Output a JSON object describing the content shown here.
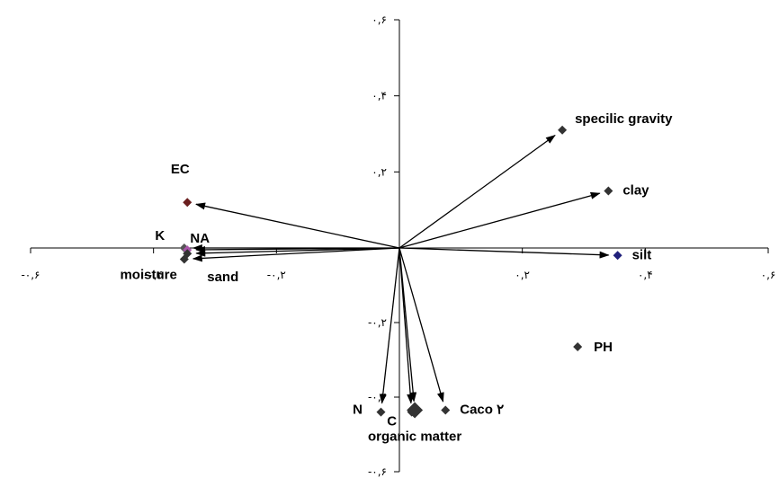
{
  "chart_data": {
    "type": "scatter",
    "subtype": "biplot-with-vectors",
    "title": "",
    "xlabel": "",
    "ylabel": "",
    "xlim": [
      -0.6,
      0.6
    ],
    "ylim": [
      -0.6,
      0.6
    ],
    "grid": false,
    "legend": "none",
    "x_ticks": [
      {
        "value": -0.6,
        "label": "-۰,۶"
      },
      {
        "value": -0.4,
        "label": "-۰,۴"
      },
      {
        "value": -0.2,
        "label": "-۰,۲"
      },
      {
        "value": 0.2,
        "label": "۰,۲"
      },
      {
        "value": 0.4,
        "label": "۰,۴"
      },
      {
        "value": 0.6,
        "label": "۰,۶"
      }
    ],
    "y_ticks": [
      {
        "value": 0.6,
        "label": "۰,۶"
      },
      {
        "value": 0.4,
        "label": "۰,۴"
      },
      {
        "value": 0.2,
        "label": "۰,۲"
      },
      {
        "value": -0.2,
        "label": "-۰,۲"
      },
      {
        "value": -0.4,
        "label": "-۰,۴"
      },
      {
        "value": -0.6,
        "label": "-۰,۶"
      }
    ],
    "points": [
      {
        "label": "specilic gravity",
        "x": 0.265,
        "y": 0.31,
        "arrow": true,
        "color": "#333333"
      },
      {
        "label": "clay",
        "x": 0.34,
        "y": 0.15,
        "arrow": true,
        "color": "#333333"
      },
      {
        "label": "silt",
        "x": 0.355,
        "y": -0.02,
        "arrow": true,
        "color": "#1f1f7a"
      },
      {
        "label": "PH",
        "x": 0.29,
        "y": -0.265,
        "arrow": false,
        "color": "#333333"
      },
      {
        "label": "EC",
        "x": -0.345,
        "y": 0.12,
        "arrow": true,
        "color": "#6b1f1f"
      },
      {
        "label": "K",
        "x": -0.35,
        "y": 0.0,
        "arrow": true,
        "color": "#555555"
      },
      {
        "label": "NA",
        "x": -0.345,
        "y": -0.005,
        "arrow": true,
        "color": "#aa55aa"
      },
      {
        "label": "moisture",
        "x": -0.35,
        "y": -0.03,
        "arrow": true,
        "color": "#333333"
      },
      {
        "label": "sand",
        "x": -0.345,
        "y": -0.015,
        "arrow": true,
        "color": "#333333"
      },
      {
        "label": "N",
        "x": -0.03,
        "y": -0.44,
        "arrow": true,
        "color": "#333333"
      },
      {
        "label": "C",
        "x": 0.02,
        "y": -0.44,
        "arrow": true,
        "color": "#333333"
      },
      {
        "label": "organic matter",
        "x": 0.025,
        "y": -0.435,
        "arrow": true,
        "color": "#333333"
      },
      {
        "label": "Caco ۲",
        "x": 0.075,
        "y": -0.435,
        "arrow": true,
        "color": "#333333"
      }
    ]
  }
}
